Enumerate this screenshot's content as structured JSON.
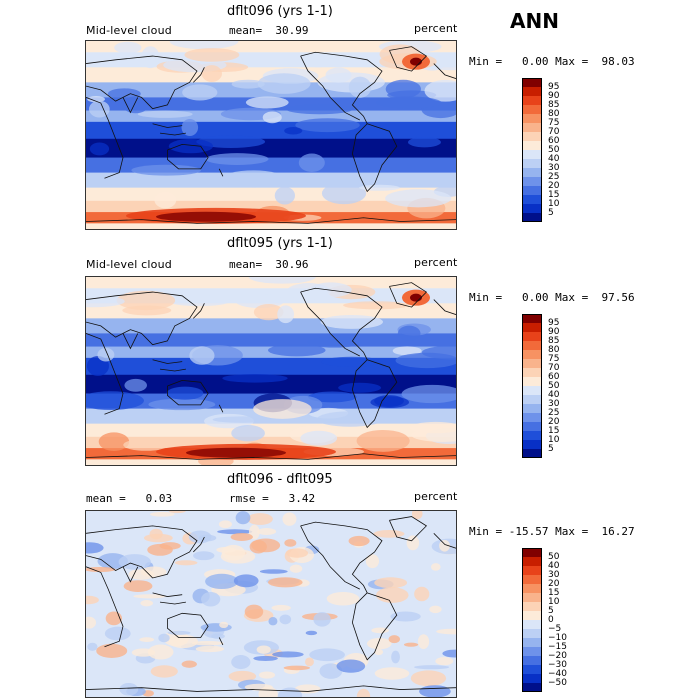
{
  "season": "ANN",
  "panels": [
    {
      "title": "dflt096 (yrs 1-1)",
      "left_label": "Mid-level cloud",
      "center_label": "mean=  30.99",
      "right_label": "percent",
      "minmax": "Min =   0.00 Max =  98.03",
      "type": "absolute"
    },
    {
      "title": "dflt095 (yrs 1-1)",
      "left_label": "Mid-level cloud",
      "center_label": "mean=  30.96",
      "right_label": "percent",
      "minmax": "Min =   0.00 Max =  97.56",
      "type": "absolute"
    },
    {
      "title": "dflt096 - dflt095",
      "left_label": "mean =   0.03",
      "center_label": "rmse =   3.42",
      "right_label": "percent",
      "minmax": "Min = -15.57 Max =  16.27",
      "type": "diff"
    }
  ],
  "colorbars": {
    "absolute": {
      "labels": [
        "95",
        "90",
        "85",
        "80",
        "75",
        "70",
        "60",
        "50",
        "40",
        "30",
        "25",
        "20",
        "15",
        "10",
        "5"
      ],
      "colors": [
        "#800000",
        "#c81e00",
        "#e8421a",
        "#f26a3a",
        "#f79262",
        "#f9b38c",
        "#fcd3b6",
        "#fdebd9",
        "#dbe6f8",
        "#bcd0f4",
        "#96b4ef",
        "#6e92ea",
        "#4670e2",
        "#1f4fd9",
        "#0830c6",
        "#00108a"
      ]
    },
    "diff": {
      "labels": [
        "50",
        "40",
        "30",
        "20",
        "15",
        "10",
        "5",
        "0",
        "−5",
        "−10",
        "−15",
        "−20",
        "−30",
        "−40",
        "−50"
      ],
      "colors": [
        "#800000",
        "#c81e00",
        "#e8421a",
        "#f26a3a",
        "#f79262",
        "#f9b38c",
        "#fcd3b6",
        "#fdebd9",
        "#dbe6f8",
        "#bcd0f4",
        "#96b4ef",
        "#6e92ea",
        "#4670e2",
        "#1f4fd9",
        "#0830c6",
        "#00108a"
      ]
    }
  }
}
